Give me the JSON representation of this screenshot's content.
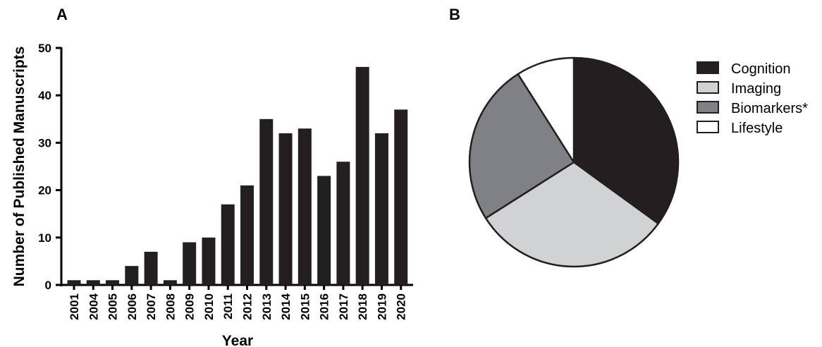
{
  "colors": {
    "bar": "#231f20",
    "axis": "#000000",
    "slice_cognition": "#231f20",
    "slice_imaging": "#d1d2d4",
    "slice_biomarkers": "#808184",
    "slice_lifestyle": "#ffffff"
  },
  "chart_data": [
    {
      "panel": "A",
      "type": "bar",
      "title": "",
      "xlabel": "Year",
      "ylabel": "Number of Published Manuscripts",
      "ylim": [
        0,
        50
      ],
      "yticks": [
        "0",
        "10",
        "20",
        "30",
        "40",
        "50"
      ],
      "categories": [
        "2001",
        "2004",
        "2005",
        "2006",
        "2007",
        "2008",
        "2009",
        "2010",
        "2011",
        "2012",
        "2013",
        "2014",
        "2015",
        "2016",
        "2017",
        "2018",
        "2019",
        "2020"
      ],
      "values": [
        1,
        1,
        1,
        4,
        7,
        1,
        9,
        10,
        17,
        21,
        35,
        32,
        33,
        23,
        26,
        46,
        32,
        37
      ],
      "grid": false
    },
    {
      "panel": "B",
      "type": "pie",
      "title": "",
      "legend_position": "right",
      "labels": [
        "Cognition",
        "Imaging",
        "Biomarkers*",
        "Lifestyle"
      ],
      "values": [
        35,
        31,
        25,
        9
      ]
    }
  ]
}
